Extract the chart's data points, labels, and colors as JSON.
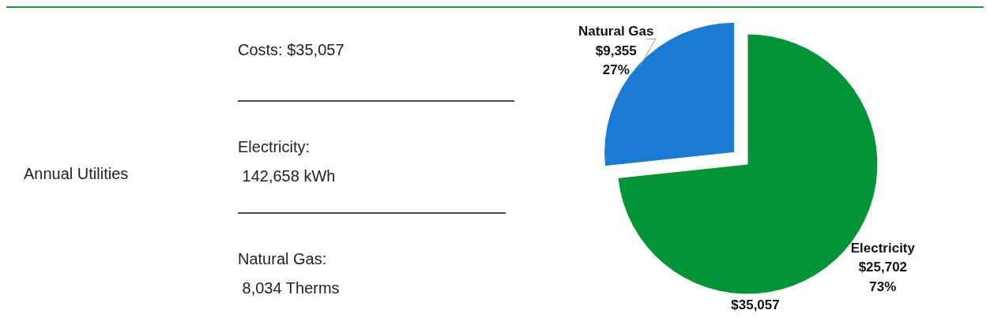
{
  "chart_data": [
    {
      "type": "other",
      "title": "Annual Utilities",
      "annotations": [
        "Costs: $35,057",
        "Electricity:\n 142,658 kWh",
        "Natural Gas:\n 8,034 Therms"
      ]
    },
    {
      "type": "pie",
      "categories": [
        "Natural Gas",
        "Electricity"
      ],
      "values": [
        9355,
        25702
      ],
      "colors": [
        "#1a7ad4",
        "#039437"
      ],
      "value_labels": [
        "$9,355\n27%",
        "$25,702\n73%"
      ],
      "annotations": [
        "$35,057"
      ]
    }
  ]
}
